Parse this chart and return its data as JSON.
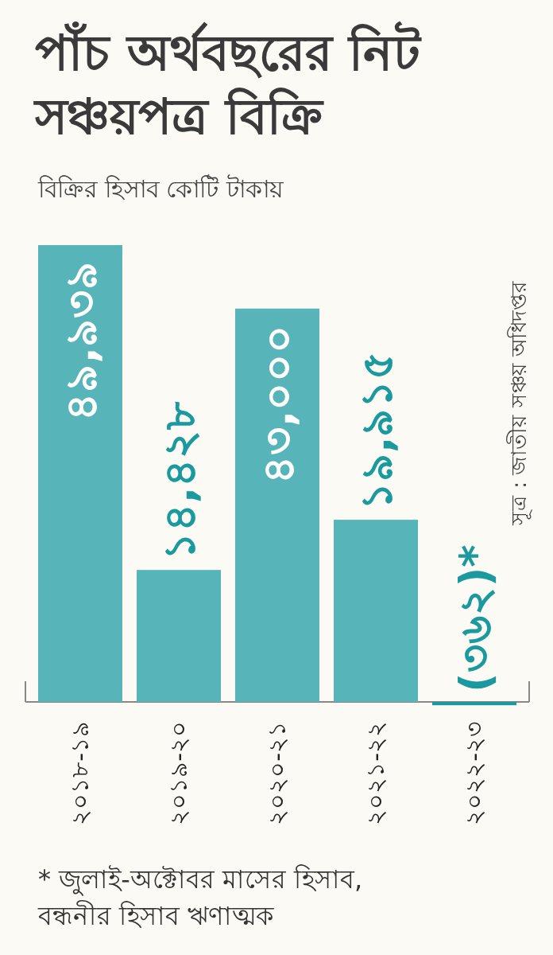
{
  "chart_data": {
    "type": "bar",
    "title": "পাঁচ অর্থবছরের নিট সঞ্চয়পত্র বিক্রি",
    "subtitle": "বিক্রির হিসাব কোটি টাকায়",
    "categories": [
      "২০১৮-১৯",
      "২০১৯-২০",
      "২০২০-২১",
      "২০২১-২২",
      "২০২২-২৩"
    ],
    "values": [
      49939,
      14428,
      43000,
      19915,
      -362
    ],
    "value_labels": [
      "৪৯,৯৩৯",
      "১৪,৪২৮",
      "৪৩,০০০",
      "১৯,৯১৫",
      "(৩৬২)*"
    ],
    "colors": [
      "#57b4b8",
      "#57b4b8",
      "#57b4b8",
      "#57b4b8",
      "#1a9a9f"
    ],
    "annotations": [
      "সূত্র : জাতীয় সঞ্চয় অধিদপ্তর",
      "* জুলাই-অক্টোবর মাসের হিসাব, বন্ধনীর হিসাব ঋণাত্মক"
    ]
  }
}
